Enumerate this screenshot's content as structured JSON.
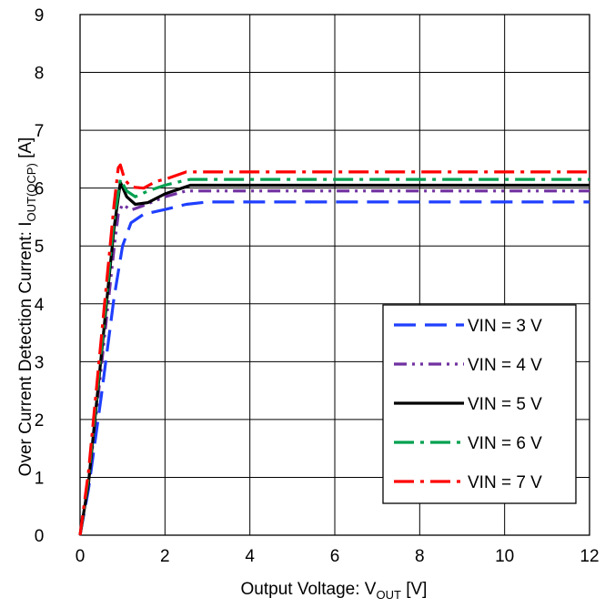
{
  "chart_data": {
    "type": "line",
    "xlabel": {
      "main": "Output Voltage: V",
      "sub": "OUT",
      "suffix": " [V]"
    },
    "ylabel": {
      "main": "Over  Current Detection Current: I",
      "sub": "OUT(OCP)",
      "suffix": " [A]"
    },
    "xlim": [
      0,
      12
    ],
    "ylim": [
      0,
      9
    ],
    "xticks": [
      0,
      2,
      4,
      6,
      8,
      10,
      12
    ],
    "yticks": [
      0,
      1,
      2,
      3,
      4,
      5,
      6,
      7,
      8,
      9
    ],
    "xtick_labels": [
      "0",
      "2",
      "4",
      "6",
      "8",
      "10",
      "12"
    ],
    "ytick_labels": [
      "0",
      "1",
      "2",
      "3",
      "4",
      "5",
      "6",
      "7",
      "8",
      "9"
    ],
    "grid": true,
    "legend_position": "bottom-right",
    "series": [
      {
        "name": "VIN = 3 V",
        "color": "#1f3fff",
        "dash": "long-dash",
        "x": [
          0,
          0.2,
          0.5,
          0.8,
          1.0,
          1.2,
          1.5,
          2.0,
          2.5,
          3.0,
          4.0,
          6.0,
          8.0,
          10.0,
          12.0
        ],
        "y": [
          0,
          0.8,
          2.4,
          4.1,
          5.0,
          5.4,
          5.55,
          5.63,
          5.72,
          5.76,
          5.76,
          5.76,
          5.76,
          5.76,
          5.76
        ]
      },
      {
        "name": "VIN = 4 V",
        "color": "#7030a0",
        "dash": "dash-dot-dot",
        "x": [
          0,
          0.2,
          0.5,
          0.8,
          0.9,
          1.0,
          1.2,
          1.5,
          2.0,
          2.5,
          3.0,
          4.0,
          6.0,
          8.0,
          10.0,
          12.0
        ],
        "y": [
          0,
          0.9,
          2.9,
          4.95,
          5.55,
          5.72,
          5.62,
          5.7,
          5.85,
          5.95,
          5.95,
          5.95,
          5.95,
          5.95,
          5.95,
          5.95
        ]
      },
      {
        "name": "VIN = 5 V",
        "color": "#000000",
        "dash": "solid",
        "x": [
          0,
          0.2,
          0.5,
          0.8,
          0.95,
          1.1,
          1.3,
          1.6,
          2.0,
          2.4,
          2.6,
          4.0,
          6.0,
          8.0,
          10.0,
          12.0
        ],
        "y": [
          0,
          0.9,
          3.1,
          5.3,
          6.1,
          5.85,
          5.72,
          5.75,
          5.9,
          6.0,
          6.05,
          6.05,
          6.05,
          6.05,
          6.05,
          6.05
        ]
      },
      {
        "name": "VIN = 6 V",
        "color": "#00a050",
        "dash": "dash-dot",
        "x": [
          0,
          0.2,
          0.5,
          0.8,
          0.95,
          1.1,
          1.3,
          1.6,
          2.0,
          2.4,
          2.6,
          4.0,
          6.0,
          8.0,
          10.0,
          12.0
        ],
        "y": [
          0,
          1.0,
          3.2,
          5.45,
          6.15,
          5.95,
          5.85,
          5.95,
          6.05,
          6.12,
          6.15,
          6.15,
          6.15,
          6.15,
          6.15,
          6.15
        ]
      },
      {
        "name": "VIN = 7 V",
        "color": "#ff0000",
        "dash": "dash-dot",
        "x": [
          0,
          0.2,
          0.5,
          0.8,
          0.9,
          0.95,
          1.05,
          1.2,
          1.5,
          1.8,
          2.0,
          2.5,
          4.0,
          6.0,
          8.0,
          10.0,
          12.0
        ],
        "y": [
          0,
          1.1,
          3.4,
          5.7,
          6.35,
          6.4,
          6.15,
          6.02,
          6.0,
          6.12,
          6.15,
          6.28,
          6.28,
          6.28,
          6.28,
          6.28,
          6.28
        ]
      }
    ]
  }
}
